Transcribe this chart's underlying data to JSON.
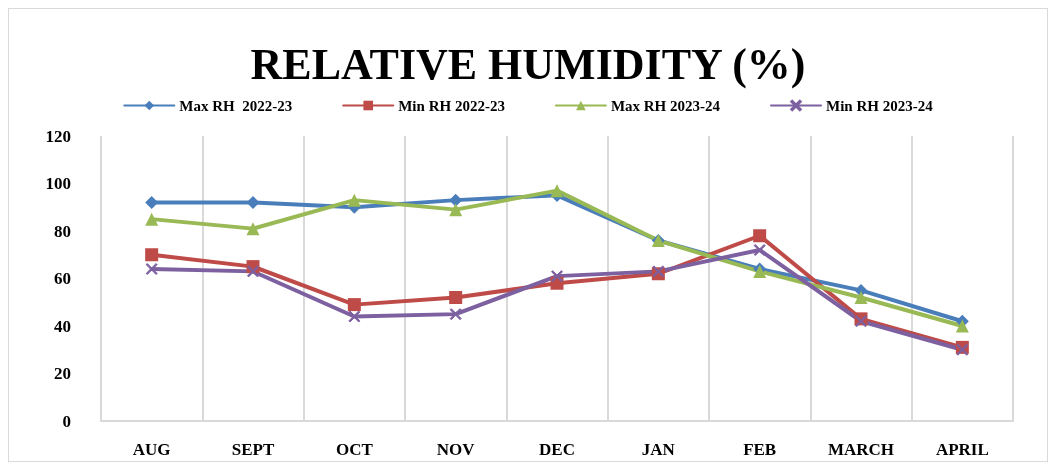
{
  "chart_data": {
    "type": "line",
    "title": "RELATIVE HUMIDITY (%)",
    "categories": [
      "AUG",
      "SEPT",
      "OCT",
      "NOV",
      "DEC",
      "JAN",
      "FEB",
      "MARCH",
      "APRIL"
    ],
    "series": [
      {
        "name": "Max RH  2022-23",
        "color": "#4a7ebb",
        "marker": "diamond",
        "values": [
          92,
          92,
          90,
          93,
          95,
          76,
          64,
          55,
          42
        ]
      },
      {
        "name": "Min RH 2022-23",
        "color": "#be4b48",
        "marker": "square",
        "values": [
          70,
          65,
          49,
          52,
          58,
          62,
          78,
          43,
          31
        ]
      },
      {
        "name": "Max RH 2023-24",
        "color": "#98b954",
        "marker": "triangle",
        "values": [
          85,
          81,
          93,
          89,
          97,
          76,
          63,
          52,
          40
        ]
      },
      {
        "name": "Min RH 2023-24",
        "color": "#7d60a0",
        "marker": "cross",
        "values": [
          64,
          63,
          44,
          45,
          61,
          63,
          72,
          42,
          30
        ]
      }
    ],
    "ylim": [
      0,
      120
    ],
    "yticks": [
      0,
      20,
      40,
      60,
      80,
      100,
      120
    ],
    "grid": "x",
    "legend": "top",
    "line_style": "solid"
  }
}
